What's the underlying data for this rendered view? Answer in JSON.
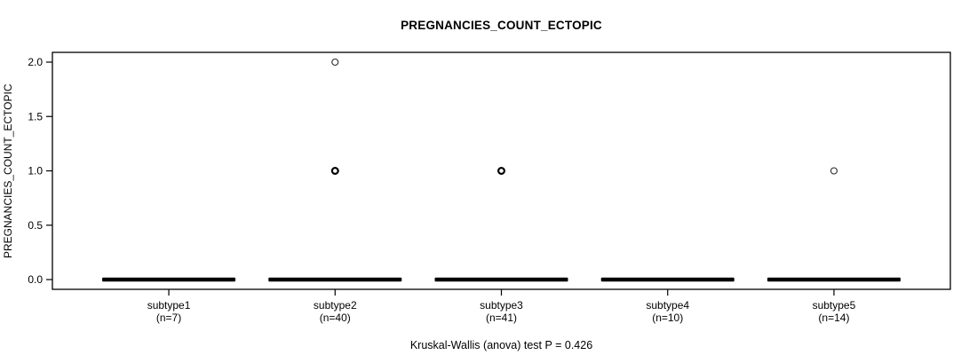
{
  "chart_data": {
    "type": "boxplot",
    "title": "PREGNANCIES_COUNT_ECTOPIC",
    "ylabel": "PREGNANCIES_COUNT_ECTOPIC",
    "xlabel": "",
    "annotation": "Kruskal-Wallis (anova) test P = 0.426",
    "ylim": [
      0.0,
      2.0
    ],
    "grid": false,
    "legend": "none",
    "yticks": [
      {
        "value": 0.0,
        "label": "0.0"
      },
      {
        "value": 0.5,
        "label": "0.5"
      },
      {
        "value": 1.0,
        "label": "1.0"
      },
      {
        "value": 1.5,
        "label": "1.5"
      },
      {
        "value": 2.0,
        "label": "2.0"
      }
    ],
    "groups": [
      {
        "label": "subtype1",
        "sublabel": "(n=7)",
        "n": 7,
        "whisker_low": 0,
        "q1": 0,
        "median": 0,
        "q3": 0,
        "whisker_high": 0,
        "outliers": []
      },
      {
        "label": "subtype2",
        "sublabel": "(n=40)",
        "n": 40,
        "whisker_low": 0,
        "q1": 0,
        "median": 0,
        "q3": 0,
        "whisker_high": 0,
        "outliers": [
          {
            "value": 2,
            "weight": "light"
          },
          {
            "value": 1,
            "weight": "heavy"
          }
        ]
      },
      {
        "label": "subtype3",
        "sublabel": "(n=41)",
        "n": 41,
        "whisker_low": 0,
        "q1": 0,
        "median": 0,
        "q3": 0,
        "whisker_high": 0,
        "outliers": [
          {
            "value": 1,
            "weight": "heavy"
          }
        ]
      },
      {
        "label": "subtype4",
        "sublabel": "(n=10)",
        "n": 10,
        "whisker_low": 0,
        "q1": 0,
        "median": 0,
        "q3": 0,
        "whisker_high": 0,
        "outliers": []
      },
      {
        "label": "subtype5",
        "sublabel": "(n=14)",
        "n": 14,
        "whisker_low": 0,
        "q1": 0,
        "median": 0,
        "q3": 0,
        "whisker_high": 0,
        "outliers": [
          {
            "value": 1,
            "weight": "light"
          }
        ]
      }
    ],
    "colors": {
      "line": "#000000",
      "box_fill": "#000000",
      "text": "#000000",
      "background": "#ffffff"
    }
  }
}
